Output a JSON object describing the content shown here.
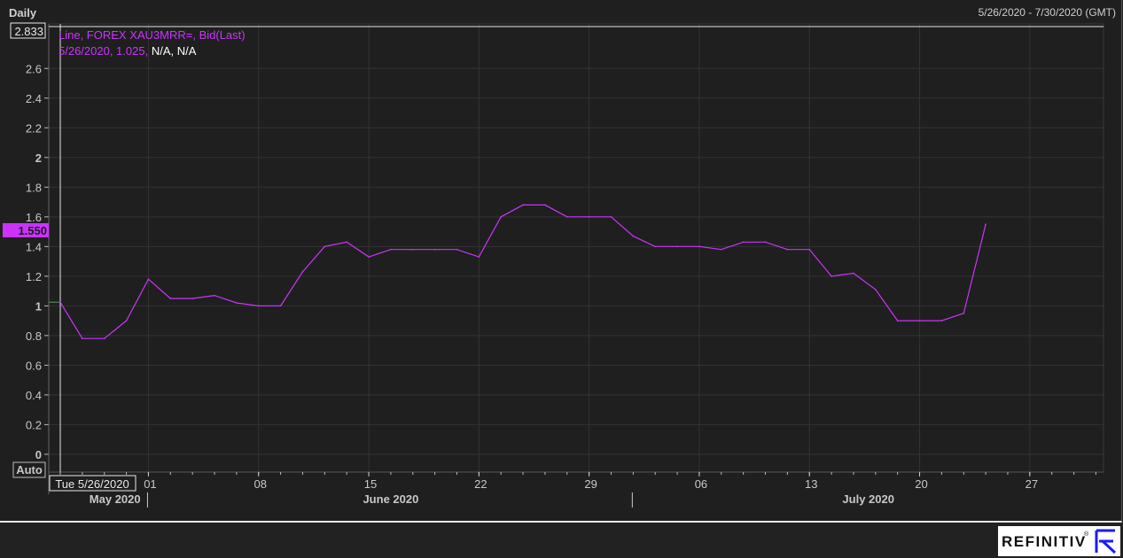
{
  "header": {
    "period": "Daily",
    "date_range": "5/26/2020 - 7/30/2020 (GMT)"
  },
  "legend": {
    "line1": "Line, FOREX XAU3MRR=, Bid(Last)",
    "line2_colored": "5/26/2020, 1.025,",
    "line2_plain": " N/A, N/A"
  },
  "y_axis": {
    "top_value_label": "2.833",
    "last_value_label": "1.550",
    "auto_label": "Auto"
  },
  "x_axis": {
    "cursor_label": "Tue 5/26/2020"
  },
  "brand": {
    "logo_text": "REFINITIV",
    "registered": "®"
  },
  "colors": {
    "series": "#cc33ff",
    "background": "#1f1f1f",
    "grid": "#333333",
    "last_value_badge": "#cc33ff"
  },
  "chart_data": {
    "type": "line",
    "title": "",
    "series": [
      {
        "name": "FOREX XAU3MRR=, Bid(Last)",
        "x": [
          "2020-05-26",
          "2020-05-27",
          "2020-05-28",
          "2020-05-29",
          "2020-06-01",
          "2020-06-02",
          "2020-06-03",
          "2020-06-04",
          "2020-06-05",
          "2020-06-08",
          "2020-06-09",
          "2020-06-10",
          "2020-06-11",
          "2020-06-12",
          "2020-06-15",
          "2020-06-16",
          "2020-06-17",
          "2020-06-18",
          "2020-06-19",
          "2020-06-22",
          "2020-06-23",
          "2020-06-24",
          "2020-06-25",
          "2020-06-26",
          "2020-06-29",
          "2020-06-30",
          "2020-07-01",
          "2020-07-02",
          "2020-07-03",
          "2020-07-06",
          "2020-07-07",
          "2020-07-08",
          "2020-07-09",
          "2020-07-10",
          "2020-07-13",
          "2020-07-14",
          "2020-07-15",
          "2020-07-16",
          "2020-07-17",
          "2020-07-20",
          "2020-07-21",
          "2020-07-22",
          "2020-07-23"
        ],
        "values": [
          1.025,
          0.78,
          0.78,
          0.9,
          1.18,
          1.05,
          1.05,
          1.07,
          1.02,
          1.0,
          1.0,
          1.23,
          1.4,
          1.43,
          1.33,
          1.38,
          1.38,
          1.38,
          1.38,
          1.33,
          1.6,
          1.68,
          1.68,
          1.6,
          1.6,
          1.6,
          1.47,
          1.4,
          1.4,
          1.4,
          1.38,
          1.43,
          1.43,
          1.38,
          1.38,
          1.2,
          1.22,
          1.11,
          0.9,
          0.9,
          0.9,
          0.95,
          1.55
        ]
      }
    ],
    "y_ticks": [
      0,
      0.2,
      0.4,
      0.6,
      0.8,
      1,
      1.2,
      1.4,
      1.6,
      1.8,
      2,
      2.2,
      2.4,
      2.6
    ],
    "ylim": [
      -0.12,
      2.9
    ],
    "x_ticks": [
      {
        "date": "2020-06-01",
        "label": "01"
      },
      {
        "date": "2020-06-08",
        "label": "08"
      },
      {
        "date": "2020-06-15",
        "label": "15"
      },
      {
        "date": "2020-06-22",
        "label": "22"
      },
      {
        "date": "2020-06-29",
        "label": "29"
      },
      {
        "date": "2020-07-06",
        "label": "06"
      },
      {
        "date": "2020-07-13",
        "label": "13"
      },
      {
        "date": "2020-07-20",
        "label": "20"
      },
      {
        "date": "2020-07-27",
        "label": "27"
      }
    ],
    "months": [
      {
        "label": "May 2020",
        "start": "2020-05-26",
        "end": "2020-06-01"
      },
      {
        "label": "June 2020",
        "start": "2020-06-01",
        "end": "2020-07-01"
      },
      {
        "label": "July 2020",
        "start": "2020-07-01",
        "end": "2020-07-31"
      }
    ],
    "grid": true,
    "legend_position": "top-left"
  }
}
